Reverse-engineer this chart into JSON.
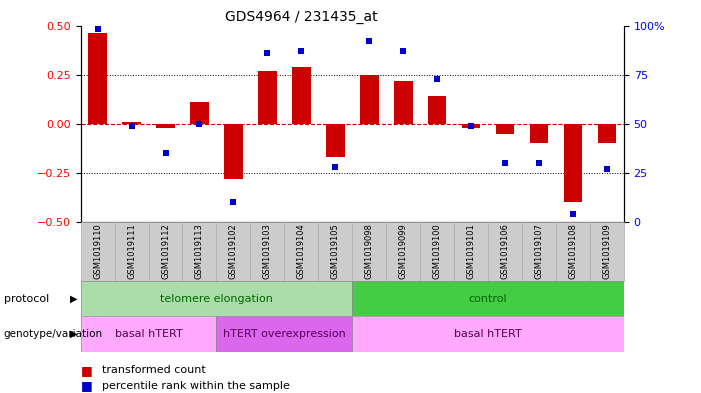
{
  "title": "GDS4964 / 231435_at",
  "samples": [
    "GSM1019110",
    "GSM1019111",
    "GSM1019112",
    "GSM1019113",
    "GSM1019102",
    "GSM1019103",
    "GSM1019104",
    "GSM1019105",
    "GSM1019098",
    "GSM1019099",
    "GSM1019100",
    "GSM1019101",
    "GSM1019106",
    "GSM1019107",
    "GSM1019108",
    "GSM1019109"
  ],
  "transformed_count": [
    0.46,
    0.01,
    -0.02,
    0.11,
    -0.28,
    0.27,
    0.29,
    -0.17,
    0.25,
    0.22,
    0.14,
    -0.02,
    -0.05,
    -0.1,
    -0.4,
    -0.1
  ],
  "percentile_rank": [
    98,
    49,
    35,
    50,
    10,
    86,
    87,
    28,
    92,
    87,
    73,
    49,
    30,
    30,
    4,
    27
  ],
  "ylim_left": [
    -0.5,
    0.5
  ],
  "ylim_right": [
    0,
    100
  ],
  "bar_color": "#cc0000",
  "dot_color": "#0000cc",
  "hline_color": "#cc0000",
  "grid_color": "#000000",
  "protocol_labels": [
    "telomere elongation",
    "control"
  ],
  "protocol_color_1": "#aaddaa",
  "protocol_color_2": "#44cc44",
  "protocol_text_color_1": "#006600",
  "protocol_text_color_2": "#006600",
  "genotype_labels": [
    "basal hTERT",
    "hTERT overexpression",
    "basal hTERT"
  ],
  "genotype_color_1": "#ffaaff",
  "genotype_color_2": "#dd66ee",
  "genotype_text_color": "#550055",
  "bg_color": "#ffffff",
  "sample_bg": "#cccccc",
  "sample_border": "#aaaaaa"
}
